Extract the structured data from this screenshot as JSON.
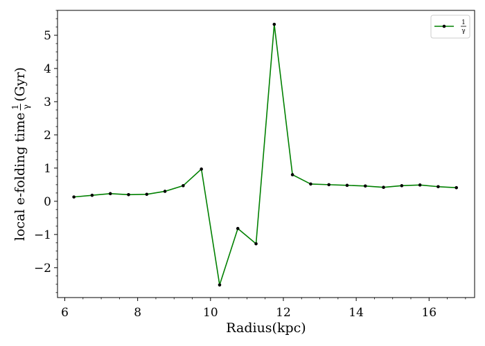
{
  "chart_data": {
    "type": "line",
    "title": "",
    "xlabel": "Radius(kpc)",
    "ylabel_prefix": "local e-folding time ",
    "ylabel_suffix": " (Gyr)",
    "ylabel_fraction": {
      "numerator": "1",
      "denominator": "γ"
    },
    "xlim": [
      5.8,
      17.25
    ],
    "ylim": [
      -2.9,
      5.75
    ],
    "x_ticks": [
      6,
      8,
      10,
      12,
      14,
      16
    ],
    "x_tick_labels": [
      "6",
      "8",
      "10",
      "12",
      "14",
      "16"
    ],
    "y_ticks": [
      -2,
      -1,
      0,
      1,
      2,
      3,
      4,
      5
    ],
    "y_tick_labels": [
      "−2",
      "−1",
      "0",
      "1",
      "2",
      "3",
      "4",
      "5"
    ],
    "grid": false,
    "legend": {
      "placement": "top-right",
      "entries": [
        {
          "label_numerator": "1",
          "label_denominator": "γ",
          "color": "#008000"
        }
      ]
    },
    "series": [
      {
        "color": "#008000",
        "marker_color": "#000000",
        "x": [
          6.25,
          6.75,
          7.25,
          7.75,
          8.25,
          8.75,
          9.25,
          9.75,
          10.25,
          10.75,
          11.25,
          11.75,
          12.25,
          12.75,
          13.25,
          13.75,
          14.25,
          14.75,
          15.25,
          15.75,
          16.25,
          16.75
        ],
        "y": [
          0.13,
          0.18,
          0.23,
          0.2,
          0.21,
          0.3,
          0.47,
          0.97,
          -2.52,
          -0.82,
          -1.28,
          5.33,
          0.8,
          0.52,
          0.5,
          0.48,
          0.46,
          0.42,
          0.47,
          0.49,
          0.44,
          0.41
        ]
      }
    ]
  }
}
